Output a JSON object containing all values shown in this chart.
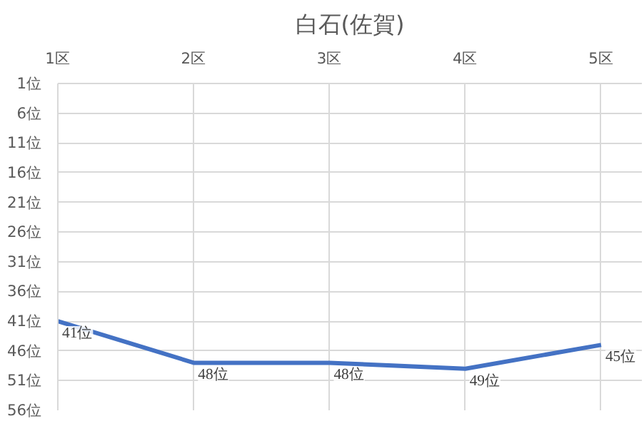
{
  "chart_data": {
    "type": "line",
    "title": "白石(佐賀)",
    "categories": [
      "1区",
      "2区",
      "3区",
      "4区",
      "5区"
    ],
    "series": [
      {
        "color": "#4472c4",
        "values": [
          41,
          48,
          48,
          49,
          45
        ],
        "value_labels": [
          "41位",
          "48位",
          "48位",
          "49位",
          "45位"
        ]
      }
    ],
    "ylim": [
      56,
      1
    ],
    "yticks": [
      {
        "value": 1,
        "label": "1位"
      },
      {
        "value": 6,
        "label": "6位"
      },
      {
        "value": 11,
        "label": "11位"
      },
      {
        "value": 16,
        "label": "16位"
      },
      {
        "value": 21,
        "label": "21位"
      },
      {
        "value": 26,
        "label": "26位"
      },
      {
        "value": 31,
        "label": "31位"
      },
      {
        "value": 36,
        "label": "36位"
      },
      {
        "value": 41,
        "label": "41位"
      },
      {
        "value": 46,
        "label": "46位"
      },
      {
        "value": 51,
        "label": "51位"
      },
      {
        "value": 56,
        "label": "56位"
      }
    ],
    "grid": true,
    "marker": "none",
    "line_style": "solid"
  }
}
